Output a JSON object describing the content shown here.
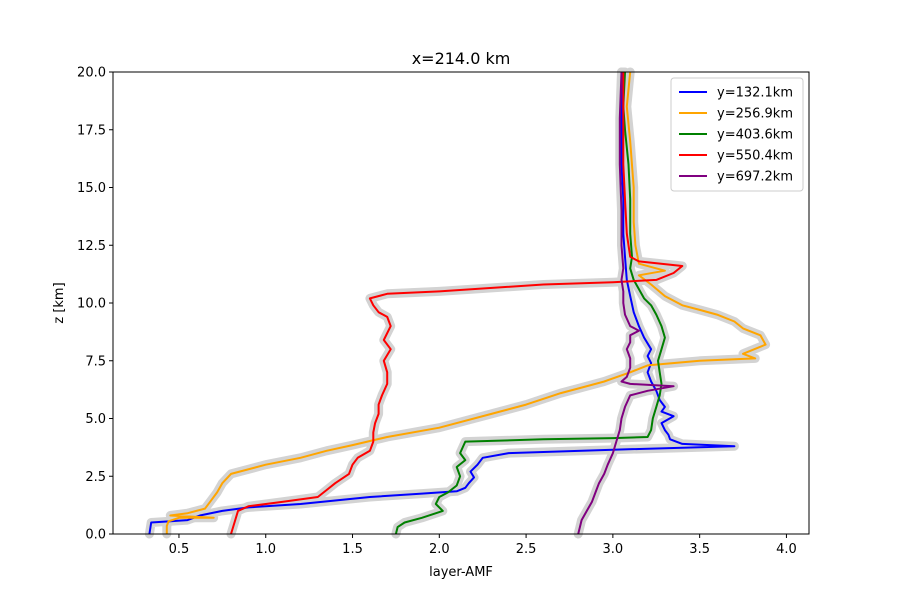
{
  "chart_data": {
    "type": "line",
    "title": "x=214.0 km",
    "xlabel": "layer-AMF",
    "ylabel": "z [km]",
    "xlim": [
      0.12,
      4.13
    ],
    "ylim": [
      0,
      20
    ],
    "xticks": [
      0.5,
      1.0,
      1.5,
      2.0,
      2.5,
      3.0,
      3.5,
      4.0
    ],
    "xtick_labels": [
      "0.5",
      "1.0",
      "1.5",
      "2.0",
      "2.5",
      "3.0",
      "3.5",
      "4.0"
    ],
    "yticks": [
      0,
      2.5,
      5,
      7.5,
      10,
      12.5,
      15,
      17.5,
      20
    ],
    "ytick_labels": [
      "0.0",
      "2.5",
      "5.0",
      "7.5",
      "10.0",
      "12.5",
      "15.0",
      "17.5",
      "20.0"
    ],
    "grid": false,
    "legend_position": "top-right",
    "uncertainty_band_color": "#d3d3d3",
    "series": [
      {
        "name": "y=132.1km",
        "color": "#0000ff",
        "points": [
          [
            0.33,
            0.0
          ],
          [
            0.34,
            0.5
          ],
          [
            0.55,
            0.6
          ],
          [
            0.62,
            0.8
          ],
          [
            0.75,
            1.0
          ],
          [
            0.9,
            1.15
          ],
          [
            1.2,
            1.3
          ],
          [
            1.6,
            1.6
          ],
          [
            1.9,
            1.75
          ],
          [
            2.1,
            1.85
          ],
          [
            2.15,
            2.0
          ],
          [
            2.17,
            2.2
          ],
          [
            2.2,
            2.45
          ],
          [
            2.18,
            2.7
          ],
          [
            2.22,
            3.0
          ],
          [
            2.25,
            3.3
          ],
          [
            2.4,
            3.5
          ],
          [
            3.0,
            3.65
          ],
          [
            3.7,
            3.8
          ],
          [
            3.4,
            3.9
          ],
          [
            3.33,
            4.1
          ],
          [
            3.32,
            4.3
          ],
          [
            3.3,
            4.5
          ],
          [
            3.28,
            4.8
          ],
          [
            3.35,
            5.1
          ],
          [
            3.28,
            5.3
          ],
          [
            3.3,
            5.5
          ],
          [
            3.27,
            5.8
          ],
          [
            3.25,
            6.2
          ],
          [
            3.22,
            6.6
          ],
          [
            3.2,
            7.0
          ],
          [
            3.22,
            7.4
          ],
          [
            3.2,
            7.7
          ],
          [
            3.22,
            8.0
          ],
          [
            3.18,
            8.5
          ],
          [
            3.15,
            9.0
          ],
          [
            3.12,
            9.6
          ],
          [
            3.1,
            10.3
          ],
          [
            3.08,
            11.0
          ],
          [
            3.07,
            12.0
          ],
          [
            3.06,
            13.0
          ],
          [
            3.06,
            14.5
          ],
          [
            3.05,
            16.0
          ],
          [
            3.05,
            18.0
          ],
          [
            3.05,
            20.0
          ]
        ]
      },
      {
        "name": "y=256.9km",
        "color": "#ffa500",
        "points": [
          [
            0.43,
            0.0
          ],
          [
            0.43,
            0.35
          ],
          [
            0.44,
            0.55
          ],
          [
            0.5,
            0.7
          ],
          [
            0.7,
            0.7
          ],
          [
            0.45,
            0.8
          ],
          [
            0.55,
            0.9
          ],
          [
            0.65,
            1.1
          ],
          [
            0.68,
            1.4
          ],
          [
            0.72,
            1.8
          ],
          [
            0.75,
            2.2
          ],
          [
            0.8,
            2.6
          ],
          [
            1.0,
            3.0
          ],
          [
            1.2,
            3.3
          ],
          [
            1.35,
            3.6
          ],
          [
            1.5,
            3.85
          ],
          [
            1.7,
            4.2
          ],
          [
            2.0,
            4.6
          ],
          [
            2.3,
            5.2
          ],
          [
            2.5,
            5.6
          ],
          [
            2.62,
            5.9
          ],
          [
            2.7,
            6.1
          ],
          [
            2.8,
            6.3
          ],
          [
            2.95,
            6.6
          ],
          [
            3.1,
            7.0
          ],
          [
            3.2,
            7.3
          ],
          [
            3.5,
            7.5
          ],
          [
            3.82,
            7.6
          ],
          [
            3.75,
            7.8
          ],
          [
            3.88,
            8.2
          ],
          [
            3.85,
            8.6
          ],
          [
            3.75,
            8.9
          ],
          [
            3.7,
            9.2
          ],
          [
            3.6,
            9.5
          ],
          [
            3.5,
            9.7
          ],
          [
            3.4,
            9.9
          ],
          [
            3.3,
            10.3
          ],
          [
            3.22,
            10.8
          ],
          [
            3.15,
            11.2
          ],
          [
            3.3,
            11.4
          ],
          [
            3.15,
            11.7
          ],
          [
            3.13,
            12.5
          ],
          [
            3.12,
            13.5
          ],
          [
            3.12,
            15.0
          ],
          [
            3.1,
            17.0
          ],
          [
            3.08,
            18.5
          ],
          [
            3.1,
            20.0
          ]
        ]
      },
      {
        "name": "y=403.6km",
        "color": "#008000",
        "points": [
          [
            1.75,
            0.0
          ],
          [
            1.76,
            0.3
          ],
          [
            1.8,
            0.5
          ],
          [
            1.9,
            0.7
          ],
          [
            2.02,
            1.0
          ],
          [
            1.98,
            1.3
          ],
          [
            2.0,
            1.6
          ],
          [
            2.05,
            1.8
          ],
          [
            2.1,
            2.1
          ],
          [
            2.12,
            2.5
          ],
          [
            2.1,
            2.9
          ],
          [
            2.15,
            3.2
          ],
          [
            2.12,
            3.5
          ],
          [
            2.15,
            4.0
          ],
          [
            2.6,
            4.1
          ],
          [
            3.0,
            4.15
          ],
          [
            3.2,
            4.2
          ],
          [
            3.22,
            4.5
          ],
          [
            3.23,
            5.0
          ],
          [
            3.25,
            5.5
          ],
          [
            3.27,
            6.0
          ],
          [
            3.28,
            6.5
          ],
          [
            3.27,
            7.0
          ],
          [
            3.26,
            7.5
          ],
          [
            3.28,
            8.0
          ],
          [
            3.3,
            8.5
          ],
          [
            3.28,
            9.0
          ],
          [
            3.25,
            9.5
          ],
          [
            3.22,
            9.9
          ],
          [
            3.18,
            10.2
          ],
          [
            3.15,
            10.6
          ],
          [
            3.12,
            11.0
          ],
          [
            3.1,
            11.5
          ],
          [
            3.11,
            12.0
          ],
          [
            3.1,
            13.0
          ],
          [
            3.1,
            14.5
          ],
          [
            3.09,
            16.0
          ],
          [
            3.07,
            17.5
          ],
          [
            3.06,
            18.5
          ],
          [
            3.07,
            20.0
          ]
        ]
      },
      {
        "name": "y=550.4km",
        "color": "#ff0000",
        "points": [
          [
            0.8,
            0.0
          ],
          [
            0.82,
            0.5
          ],
          [
            0.84,
            1.0
          ],
          [
            0.9,
            1.2
          ],
          [
            1.1,
            1.4
          ],
          [
            1.3,
            1.6
          ],
          [
            1.35,
            1.9
          ],
          [
            1.4,
            2.2
          ],
          [
            1.48,
            2.6
          ],
          [
            1.5,
            3.0
          ],
          [
            1.53,
            3.3
          ],
          [
            1.6,
            3.6
          ],
          [
            1.62,
            4.0
          ],
          [
            1.62,
            4.4
          ],
          [
            1.63,
            4.8
          ],
          [
            1.65,
            5.2
          ],
          [
            1.65,
            5.6
          ],
          [
            1.67,
            6.0
          ],
          [
            1.7,
            6.5
          ],
          [
            1.7,
            7.0
          ],
          [
            1.68,
            7.5
          ],
          [
            1.72,
            8.0
          ],
          [
            1.68,
            8.4
          ],
          [
            1.72,
            9.0
          ],
          [
            1.7,
            9.4
          ],
          [
            1.65,
            9.6
          ],
          [
            1.62,
            9.9
          ],
          [
            1.6,
            10.2
          ],
          [
            1.7,
            10.4
          ],
          [
            2.0,
            10.5
          ],
          [
            2.6,
            10.8
          ],
          [
            3.0,
            10.9
          ],
          [
            3.25,
            11.0
          ],
          [
            3.35,
            11.3
          ],
          [
            3.4,
            11.6
          ],
          [
            3.15,
            11.8
          ],
          [
            3.1,
            12.0
          ],
          [
            3.08,
            13.0
          ],
          [
            3.07,
            14.5
          ],
          [
            3.06,
            16.0
          ],
          [
            3.06,
            18.0
          ],
          [
            3.06,
            20.0
          ]
        ]
      },
      {
        "name": "y=697.2km",
        "color": "#800080",
        "points": [
          [
            2.8,
            0.0
          ],
          [
            2.81,
            0.3
          ],
          [
            2.82,
            0.6
          ],
          [
            2.85,
            1.0
          ],
          [
            2.88,
            1.4
          ],
          [
            2.9,
            1.8
          ],
          [
            2.92,
            2.2
          ],
          [
            2.95,
            2.6
          ],
          [
            2.97,
            3.0
          ],
          [
            3.0,
            3.5
          ],
          [
            3.02,
            4.0
          ],
          [
            3.04,
            4.5
          ],
          [
            3.05,
            5.0
          ],
          [
            3.07,
            5.5
          ],
          [
            3.1,
            6.0
          ],
          [
            3.2,
            6.2
          ],
          [
            3.35,
            6.4
          ],
          [
            3.1,
            6.5
          ],
          [
            3.05,
            6.6
          ],
          [
            3.08,
            6.8
          ],
          [
            3.1,
            7.2
          ],
          [
            3.1,
            7.6
          ],
          [
            3.08,
            8.0
          ],
          [
            3.1,
            8.3
          ],
          [
            3.1,
            8.6
          ],
          [
            3.15,
            8.8
          ],
          [
            3.1,
            9.0
          ],
          [
            3.07,
            9.5
          ],
          [
            3.06,
            10.0
          ],
          [
            3.06,
            10.5
          ],
          [
            3.05,
            11.0
          ],
          [
            3.06,
            11.5
          ],
          [
            3.05,
            12.5
          ],
          [
            3.05,
            14.0
          ],
          [
            3.04,
            16.0
          ],
          [
            3.04,
            18.0
          ],
          [
            3.05,
            20.0
          ]
        ]
      }
    ]
  }
}
